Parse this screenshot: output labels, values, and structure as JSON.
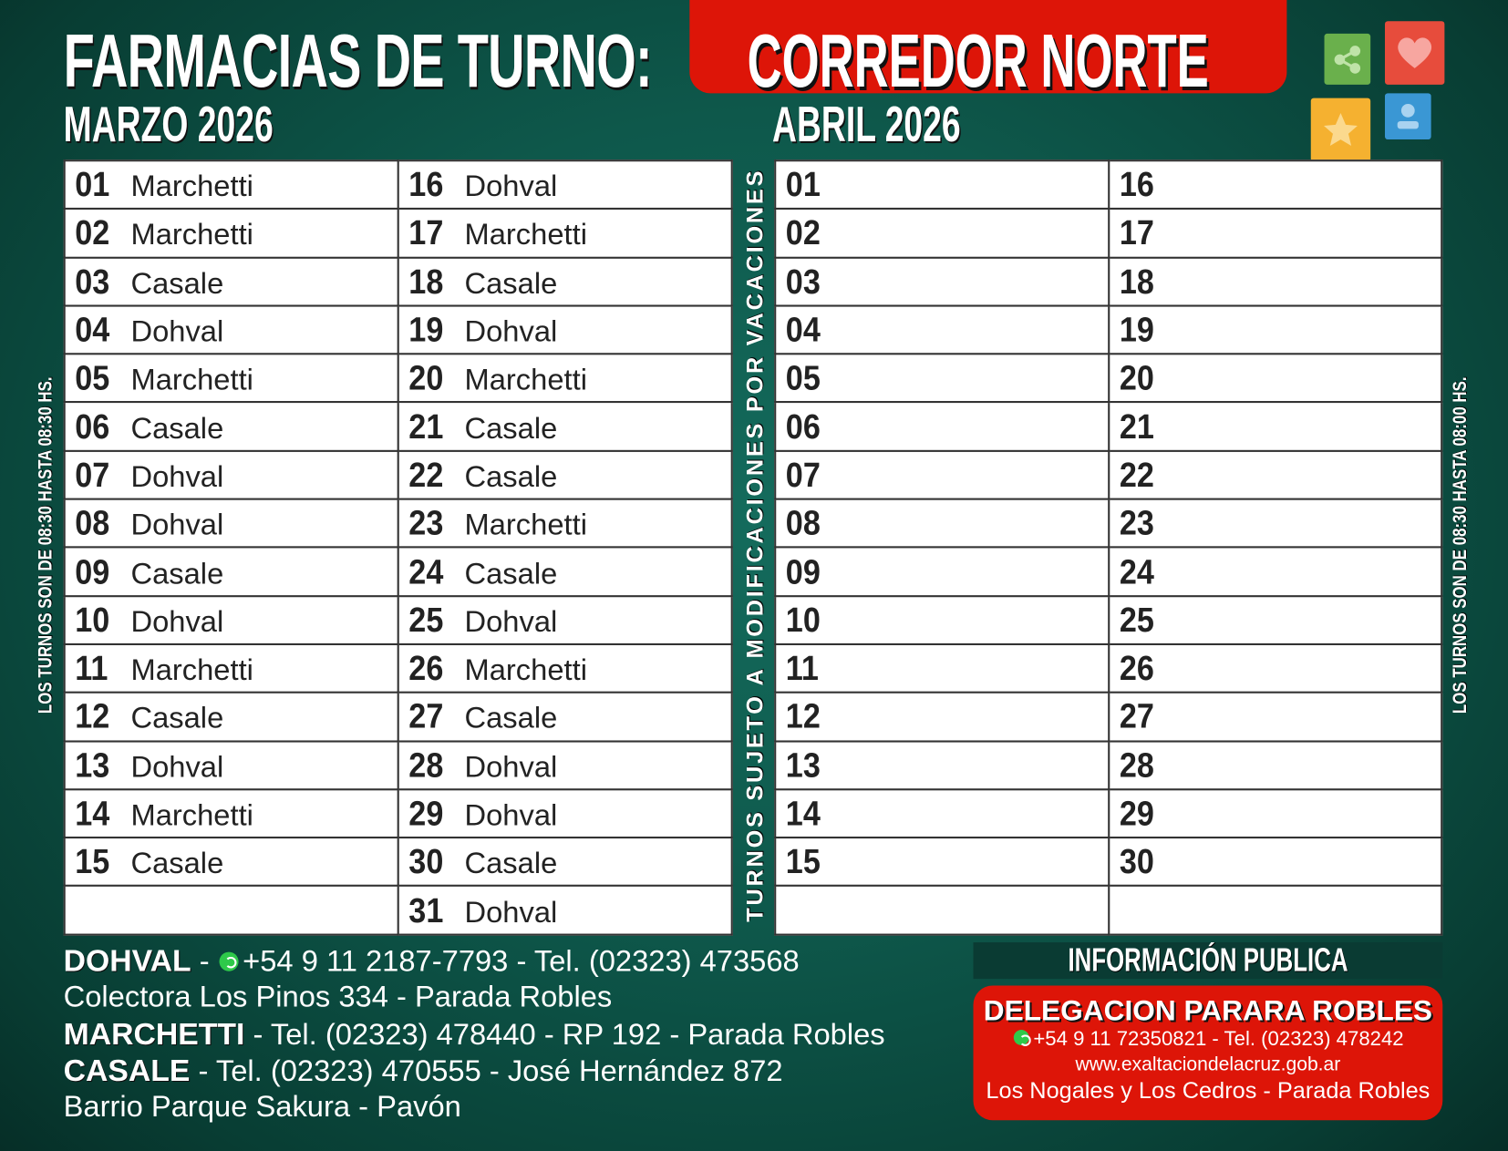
{
  "header": {
    "title": "FARMACIAS DE TURNO:",
    "region": "CORREDOR NORTE"
  },
  "icons": {
    "share": "share-icon",
    "heart": "heart-icon",
    "star": "star-icon",
    "user": "user-icon",
    "colors": {
      "share": "#6ab04c",
      "heart": "#e74c3c",
      "star": "#f5b130",
      "user": "#3a97d4",
      "banner": "#dd1508"
    }
  },
  "march": {
    "label": "MARZO 2026",
    "left": [
      [
        "01",
        "Marchetti"
      ],
      [
        "02",
        "Marchetti"
      ],
      [
        "03",
        "Casale"
      ],
      [
        "04",
        "Dohval"
      ],
      [
        "05",
        "Marchetti"
      ],
      [
        "06",
        "Casale"
      ],
      [
        "07",
        "Dohval"
      ],
      [
        "08",
        "Dohval"
      ],
      [
        "09",
        "Casale"
      ],
      [
        "10",
        "Dohval"
      ],
      [
        "11",
        "Marchetti"
      ],
      [
        "12",
        "Casale"
      ],
      [
        "13",
        "Dohval"
      ],
      [
        "14",
        "Marchetti"
      ],
      [
        "15",
        "Casale"
      ],
      [
        "",
        ""
      ]
    ],
    "right": [
      [
        "16",
        "Dohval"
      ],
      [
        "17",
        "Marchetti"
      ],
      [
        "18",
        "Casale"
      ],
      [
        "19",
        "Dohval"
      ],
      [
        "20",
        "Marchetti"
      ],
      [
        "21",
        "Casale"
      ],
      [
        "22",
        "Casale"
      ],
      [
        "23",
        "Marchetti"
      ],
      [
        "24",
        "Casale"
      ],
      [
        "25",
        "Dohval"
      ],
      [
        "26",
        "Marchetti"
      ],
      [
        "27",
        "Casale"
      ],
      [
        "28",
        "Dohval"
      ],
      [
        "29",
        "Dohval"
      ],
      [
        "30",
        "Casale"
      ],
      [
        "31",
        "Dohval"
      ]
    ]
  },
  "april": {
    "label": "ABRIL 2026",
    "left": [
      [
        "01",
        ""
      ],
      [
        "02",
        ""
      ],
      [
        "03",
        ""
      ],
      [
        "04",
        ""
      ],
      [
        "05",
        ""
      ],
      [
        "06",
        ""
      ],
      [
        "07",
        ""
      ],
      [
        "08",
        ""
      ],
      [
        "09",
        ""
      ],
      [
        "10",
        ""
      ],
      [
        "11",
        ""
      ],
      [
        "12",
        ""
      ],
      [
        "13",
        ""
      ],
      [
        "14",
        ""
      ],
      [
        "15",
        ""
      ],
      [
        "",
        ""
      ]
    ],
    "right": [
      [
        "16",
        ""
      ],
      [
        "17",
        ""
      ],
      [
        "18",
        ""
      ],
      [
        "19",
        ""
      ],
      [
        "20",
        ""
      ],
      [
        "21",
        ""
      ],
      [
        "22",
        ""
      ],
      [
        "23",
        ""
      ],
      [
        "24",
        ""
      ],
      [
        "25",
        ""
      ],
      [
        "26",
        ""
      ],
      [
        "27",
        ""
      ],
      [
        "28",
        ""
      ],
      [
        "29",
        ""
      ],
      [
        "30",
        ""
      ],
      [
        "",
        ""
      ]
    ]
  },
  "notes": {
    "left": "LOS TURNOS SON DE 08:30 HASTA 08:30 HS.",
    "middle": "TURNOS SUJETO A MODIFICACIONES POR VACACIONES",
    "right": "LOS TURNOS SON DE 08:30 HASTA 08:00 HS."
  },
  "contacts": {
    "dohval_name": "DOHVAL",
    "dohval_sep": " - ",
    "dohval_info": "+54 9 11 2187-7793 - Tel. (02323) 473568",
    "dohval_address": "Colectora Los Pinos 334 - Parada Robles",
    "marchetti_name": "MARCHETTI",
    "marchetti_info": " - Tel. (02323) 478440 - RP 192 - Parada Robles",
    "casale_name": "CASALE",
    "casale_info": " - Tel. (02323) 470555 - José Hernández 872",
    "casale_address": "Barrio Parque Sakura - Pavón"
  },
  "info": {
    "title": "INFORMACIÓN PUBLICA",
    "delegation": "DELEGACION PARARA ROBLES",
    "phone": "+54 9 11 72350821 - Tel. (02323) 478242",
    "website": "www.exaltaciondelacruz.gob.ar",
    "address": "Los Nogales y Los Cedros - Parada Robles"
  }
}
